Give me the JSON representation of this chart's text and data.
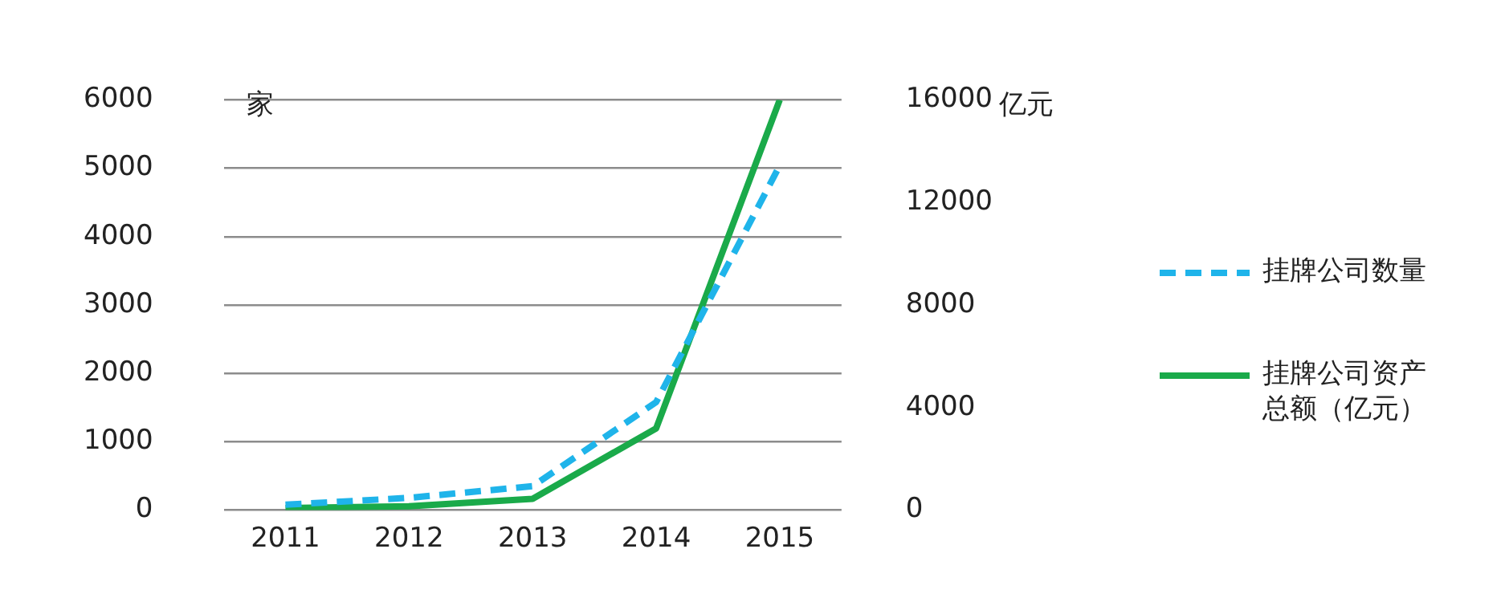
{
  "chart_data": {
    "type": "line",
    "ylabel": "家",
    "y2label": "亿元",
    "categories": [
      "2011",
      "2012",
      "2013",
      "2014",
      "2015"
    ],
    "series": [
      {
        "name": "挂牌公司数量",
        "color": "#1fb4ea",
        "values": [
          80,
          180,
          350,
          1580,
          5040
        ],
        "line_style": "dashed"
      },
      {
        "name": "挂牌公司资产总额（亿元）",
        "color": "#1aaa4a",
        "values": [
          80,
          150,
          440,
          3190,
          16000
        ],
        "axis": "y2",
        "line_style": "solid"
      }
    ],
    "ylim": [
      0,
      6000
    ],
    "yticks": [
      0,
      1000,
      2000,
      3000,
      4000,
      5000,
      6000
    ],
    "y2lim": [
      0,
      16000
    ],
    "y2ticks": [
      0,
      4000,
      8000,
      12000,
      16000
    ],
    "grid": "y",
    "legend": "right",
    "marker": "none"
  }
}
